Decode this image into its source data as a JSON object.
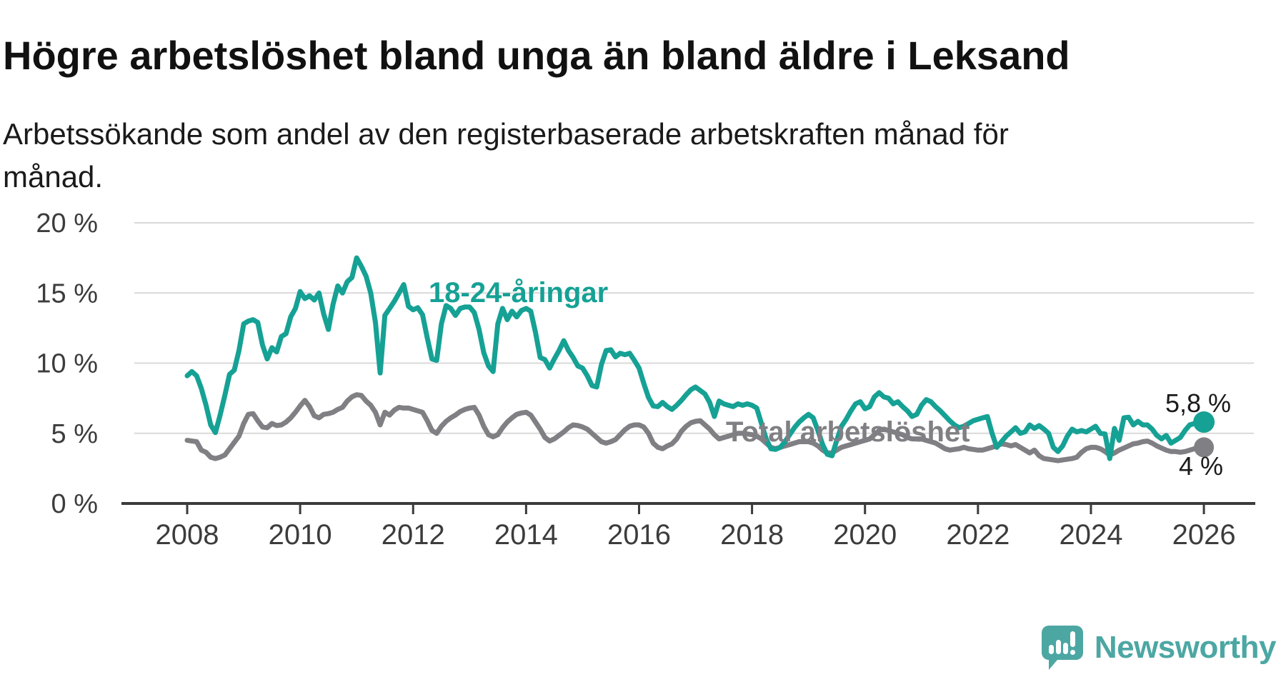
{
  "title": "Högre arbetslöshet bland unga än bland äldre i Leksand",
  "subtitle": "Arbetssökande som andel av den registerbaserade arbetskraften månad för\nmånad.",
  "chart_data": {
    "type": "line",
    "title": "Högre arbetslöshet bland unga än bland äldre i Leksand",
    "subtitle": "Arbetssökande som andel av den registerbaserade arbetskraften månad för månad.",
    "xlabel": "",
    "ylabel": "",
    "x_start_year": 2008,
    "x_step_months": 1,
    "x_end_year": 2026,
    "xlim": [
      2006.85,
      2026.9
    ],
    "ylim": [
      0,
      20
    ],
    "grid": "horizontal",
    "legend_position": "inline-labels",
    "x_tick_labels": [
      "2008",
      "2010",
      "2012",
      "2014",
      "2016",
      "2018",
      "2020",
      "2022",
      "2024",
      "2026"
    ],
    "y_ticks": {
      "values": [
        20,
        15,
        10,
        5,
        0
      ],
      "labels": [
        "20 %",
        "15 %",
        "10 %",
        "5 %",
        "0 %"
      ]
    },
    "colors": {
      "young_series": "#16a195",
      "total_series": "#7f7f84",
      "gridline": "#d9d9d9",
      "axis": "#3b3b3b",
      "text": "#1a1a1a"
    },
    "series": [
      {
        "name": "18-24-åringar",
        "color": "#16a195",
        "end_value_label": "5,8 %",
        "values": [
          9.1,
          9.4,
          9.1,
          8.2,
          7.0,
          5.6,
          5.05,
          6.3,
          7.7,
          9.2,
          9.5,
          10.9,
          12.8,
          13.0,
          13.1,
          12.9,
          11.3,
          10.3,
          11.1,
          10.8,
          11.9,
          12.1,
          13.3,
          13.9,
          15.1,
          14.6,
          14.8,
          14.5,
          15.0,
          13.5,
          12.4,
          14.2,
          15.5,
          15.0,
          15.8,
          16.1,
          17.5,
          16.9,
          16.2,
          15.0,
          12.9,
          9.3,
          13.4,
          13.9,
          14.4,
          15.0,
          15.6,
          14.05,
          13.8,
          13.95,
          13.45,
          11.8,
          10.3,
          10.2,
          12.8,
          14.1,
          13.9,
          13.4,
          13.9,
          14.0,
          14.0,
          13.6,
          12.4,
          10.75,
          9.8,
          9.4,
          12.8,
          13.9,
          13.1,
          13.7,
          13.3,
          13.75,
          13.9,
          13.7,
          12.2,
          10.4,
          10.25,
          9.65,
          10.3,
          10.9,
          11.6,
          10.9,
          10.4,
          9.8,
          9.65,
          9.1,
          8.4,
          8.3,
          9.9,
          10.9,
          10.95,
          10.45,
          10.7,
          10.6,
          10.7,
          10.2,
          9.65,
          8.55,
          7.55,
          6.95,
          6.9,
          7.2,
          6.9,
          6.7,
          7.0,
          7.35,
          7.75,
          8.1,
          8.3,
          8.05,
          7.8,
          7.2,
          6.2,
          7.3,
          7.1,
          7.0,
          6.9,
          7.1,
          7.0,
          7.1,
          7.0,
          6.8,
          5.7,
          4.6,
          3.9,
          3.85,
          4.0,
          4.4,
          4.9,
          5.4,
          5.8,
          6.1,
          6.35,
          6.1,
          5.2,
          4.2,
          3.5,
          3.4,
          4.5,
          5.5,
          6.0,
          6.6,
          7.1,
          7.25,
          6.75,
          6.9,
          7.6,
          7.9,
          7.6,
          7.5,
          7.1,
          7.25,
          6.9,
          6.6,
          6.2,
          6.35,
          7.0,
          7.4,
          7.25,
          6.9,
          6.6,
          6.25,
          5.9,
          5.6,
          5.4,
          5.5,
          5.7,
          5.9,
          6.0,
          6.1,
          6.2,
          5.0,
          4.0,
          4.4,
          4.8,
          5.1,
          5.4,
          5.0,
          5.1,
          5.6,
          5.35,
          5.55,
          5.3,
          5.0,
          4.0,
          3.7,
          4.1,
          4.8,
          5.3,
          5.1,
          5.2,
          5.1,
          5.3,
          5.5,
          5.0,
          4.95,
          3.2,
          5.35,
          4.5,
          6.1,
          6.15,
          5.6,
          5.85,
          5.6,
          5.6,
          5.3,
          4.85,
          4.6,
          4.85,
          4.3,
          4.5,
          4.7,
          5.2,
          5.6,
          5.7,
          5.75,
          5.8
        ]
      },
      {
        "name": "Total arbetslöshet",
        "color": "#7f7f84",
        "end_value_label": "4 %",
        "values": [
          4.5,
          4.45,
          4.4,
          3.8,
          3.65,
          3.3,
          3.2,
          3.3,
          3.45,
          3.9,
          4.35,
          4.8,
          5.7,
          6.35,
          6.4,
          5.9,
          5.45,
          5.4,
          5.7,
          5.55,
          5.6,
          5.8,
          6.1,
          6.5,
          6.95,
          7.35,
          6.9,
          6.25,
          6.1,
          6.35,
          6.4,
          6.5,
          6.7,
          6.85,
          7.3,
          7.6,
          7.75,
          7.7,
          7.3,
          7.0,
          6.5,
          5.6,
          6.5,
          6.3,
          6.65,
          6.85,
          6.8,
          6.8,
          6.7,
          6.6,
          6.5,
          5.9,
          5.2,
          5.0,
          5.5,
          5.85,
          6.1,
          6.3,
          6.55,
          6.7,
          6.8,
          6.85,
          6.3,
          5.5,
          4.9,
          4.75,
          4.9,
          5.4,
          5.8,
          6.1,
          6.35,
          6.45,
          6.5,
          6.3,
          5.8,
          5.3,
          4.7,
          4.45,
          4.6,
          4.85,
          5.1,
          5.4,
          5.6,
          5.55,
          5.45,
          5.3,
          5.0,
          4.7,
          4.4,
          4.3,
          4.4,
          4.55,
          4.9,
          5.25,
          5.5,
          5.6,
          5.6,
          5.45,
          5.0,
          4.3,
          4.0,
          3.9,
          4.1,
          4.25,
          4.6,
          5.15,
          5.5,
          5.75,
          5.85,
          5.9,
          5.6,
          5.3,
          4.9,
          4.6,
          4.7,
          4.8,
          4.9,
          5.0,
          5.0,
          4.95,
          4.9,
          4.8,
          4.6,
          4.3,
          4.0,
          3.9,
          4.0,
          4.1,
          4.2,
          4.3,
          4.4,
          4.4,
          4.4,
          4.3,
          4.1,
          3.8,
          3.6,
          3.6,
          3.8,
          4.0,
          4.1,
          4.2,
          4.3,
          4.4,
          4.5,
          4.6,
          4.9,
          5.2,
          5.3,
          5.2,
          5.1,
          5.0,
          4.9,
          4.7,
          4.6,
          4.6,
          4.6,
          4.5,
          4.4,
          4.3,
          4.1,
          3.9,
          3.8,
          3.85,
          3.9,
          4.0,
          3.9,
          3.85,
          3.8,
          3.8,
          3.9,
          4.0,
          4.1,
          4.25,
          4.2,
          4.1,
          4.2,
          4.0,
          3.8,
          3.6,
          3.8,
          3.4,
          3.2,
          3.15,
          3.1,
          3.05,
          3.1,
          3.15,
          3.2,
          3.3,
          3.65,
          3.9,
          4.0,
          4.0,
          3.9,
          3.7,
          3.45,
          3.6,
          3.8,
          3.95,
          4.1,
          4.25,
          4.3,
          4.4,
          4.45,
          4.3,
          4.1,
          3.95,
          3.8,
          3.7,
          3.7,
          3.65,
          3.7,
          3.8,
          3.9,
          3.95,
          4.0
        ]
      }
    ],
    "end_labels": [
      {
        "text": "5,8 %"
      },
      {
        "text": "4 %"
      }
    ]
  },
  "branding": {
    "name": "Newsworthy"
  }
}
